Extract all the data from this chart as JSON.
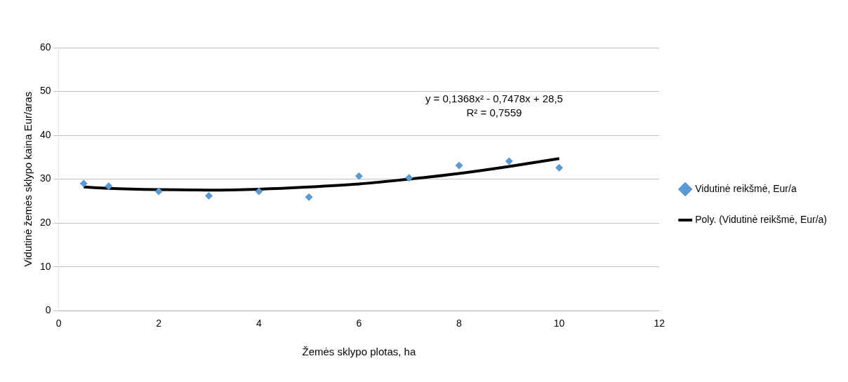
{
  "chart_data": {
    "type": "scatter",
    "xlabel": "Žemės sklypo plotas, ha",
    "ylabel": "Vidutinė žemės sklypo kaina Eur/aras",
    "xlim": [
      0,
      12
    ],
    "xticks": [
      0,
      2,
      4,
      6,
      8,
      10,
      12
    ],
    "ylim": [
      0,
      60
    ],
    "yticks": [
      0,
      10,
      20,
      30,
      40,
      50,
      60
    ],
    "grid": "y",
    "legend": "right",
    "series": [
      {
        "name": "Vidutinė reikšmė, Eur/a",
        "type": "scatter",
        "color": "#5b9bd5",
        "marker": "diamond",
        "x": [
          0.5,
          1,
          2,
          3,
          4,
          5,
          6,
          7,
          8,
          9,
          10
        ],
        "values": [
          29.0,
          28.4,
          27.2,
          26.2,
          27.2,
          25.9,
          30.7,
          30.3,
          33.1,
          34.1,
          32.6
        ]
      },
      {
        "name": "Poly. (Vidutinė reikšmė, Eur/a)",
        "type": "line",
        "color": "#000000",
        "marker": "none",
        "line_style": "solid",
        "x": [
          0.5,
          1,
          2,
          3,
          4,
          5,
          6,
          7,
          8,
          9,
          10
        ],
        "values": [
          28.2,
          27.9,
          27.6,
          27.5,
          27.7,
          28.2,
          28.9,
          30.0,
          31.3,
          32.9,
          34.7
        ]
      }
    ],
    "annotations": [
      "y = 0,1368x² - 0,7478x + 28,5",
      "R² = 0,7559"
    ]
  }
}
